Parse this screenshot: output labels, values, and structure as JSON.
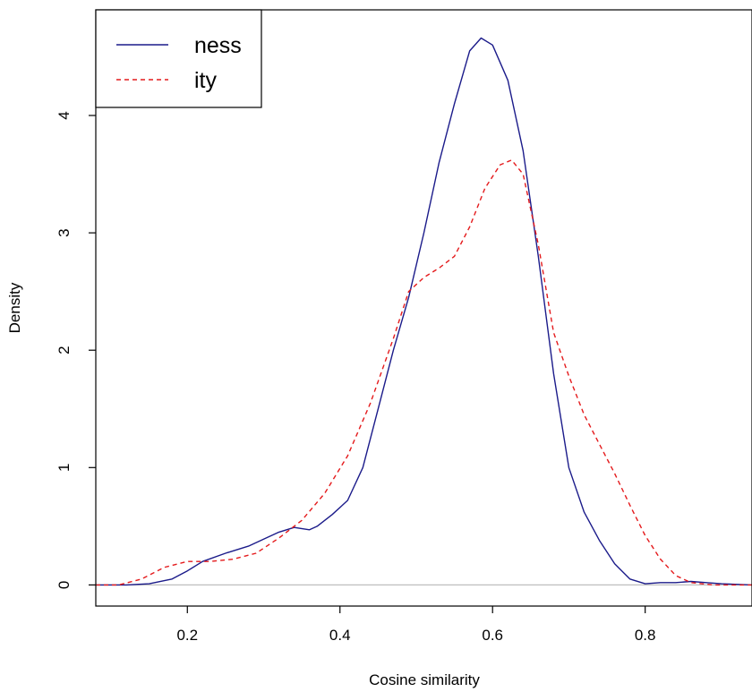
{
  "chart_data": {
    "type": "line",
    "title": "",
    "xlabel": "Cosine similarity",
    "ylabel": "Density",
    "xlim": [
      0.08,
      0.94
    ],
    "ylim": [
      -0.18,
      4.9
    ],
    "x_ticks": [
      "0.2",
      "0.4",
      "0.6",
      "0.8"
    ],
    "y_ticks": [
      "0",
      "1",
      "2",
      "3",
      "4"
    ],
    "grid": false,
    "baseline": 0,
    "legend_placement": "top-left",
    "series": [
      {
        "name": "ness",
        "color": "#1b1b8a",
        "line_style": "solid",
        "points": [
          [
            0.08,
            0.0
          ],
          [
            0.12,
            0.0
          ],
          [
            0.15,
            0.01
          ],
          [
            0.18,
            0.05
          ],
          [
            0.2,
            0.12
          ],
          [
            0.22,
            0.2
          ],
          [
            0.25,
            0.27
          ],
          [
            0.28,
            0.33
          ],
          [
            0.3,
            0.39
          ],
          [
            0.32,
            0.45
          ],
          [
            0.34,
            0.49
          ],
          [
            0.36,
            0.47
          ],
          [
            0.37,
            0.5
          ],
          [
            0.39,
            0.6
          ],
          [
            0.41,
            0.72
          ],
          [
            0.43,
            1.0
          ],
          [
            0.45,
            1.5
          ],
          [
            0.47,
            2.0
          ],
          [
            0.49,
            2.45
          ],
          [
            0.51,
            3.0
          ],
          [
            0.53,
            3.6
          ],
          [
            0.55,
            4.1
          ],
          [
            0.57,
            4.55
          ],
          [
            0.585,
            4.66
          ],
          [
            0.6,
            4.6
          ],
          [
            0.62,
            4.3
          ],
          [
            0.64,
            3.7
          ],
          [
            0.66,
            2.8
          ],
          [
            0.68,
            1.8
          ],
          [
            0.7,
            1.0
          ],
          [
            0.72,
            0.62
          ],
          [
            0.74,
            0.38
          ],
          [
            0.76,
            0.18
          ],
          [
            0.78,
            0.05
          ],
          [
            0.8,
            0.01
          ],
          [
            0.82,
            0.02
          ],
          [
            0.84,
            0.02
          ],
          [
            0.86,
            0.03
          ],
          [
            0.88,
            0.02
          ],
          [
            0.9,
            0.01
          ],
          [
            0.94,
            0.0
          ]
        ]
      },
      {
        "name": "ity",
        "color": "#e41a1c",
        "line_style": "dashed",
        "points": [
          [
            0.08,
            0.0
          ],
          [
            0.11,
            0.0
          ],
          [
            0.14,
            0.05
          ],
          [
            0.17,
            0.15
          ],
          [
            0.2,
            0.2
          ],
          [
            0.23,
            0.2
          ],
          [
            0.26,
            0.22
          ],
          [
            0.29,
            0.27
          ],
          [
            0.32,
            0.4
          ],
          [
            0.35,
            0.55
          ],
          [
            0.38,
            0.78
          ],
          [
            0.41,
            1.1
          ],
          [
            0.44,
            1.55
          ],
          [
            0.47,
            2.1
          ],
          [
            0.49,
            2.5
          ],
          [
            0.51,
            2.62
          ],
          [
            0.53,
            2.7
          ],
          [
            0.55,
            2.8
          ],
          [
            0.57,
            3.05
          ],
          [
            0.59,
            3.38
          ],
          [
            0.61,
            3.58
          ],
          [
            0.625,
            3.62
          ],
          [
            0.64,
            3.5
          ],
          [
            0.66,
            2.9
          ],
          [
            0.68,
            2.15
          ],
          [
            0.7,
            1.78
          ],
          [
            0.72,
            1.45
          ],
          [
            0.74,
            1.2
          ],
          [
            0.76,
            0.95
          ],
          [
            0.78,
            0.68
          ],
          [
            0.8,
            0.42
          ],
          [
            0.82,
            0.22
          ],
          [
            0.84,
            0.08
          ],
          [
            0.86,
            0.02
          ],
          [
            0.89,
            0.0
          ],
          [
            0.94,
            0.0
          ]
        ]
      }
    ]
  }
}
